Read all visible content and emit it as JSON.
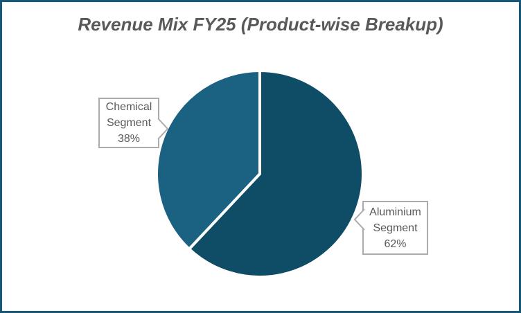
{
  "frame": {
    "background_color": "#FFFFFF",
    "border_color": "#15587A"
  },
  "chart_data": {
    "type": "pie",
    "title": "Revenue Mix FY25 (Product-wise Breakup)",
    "start_angle_deg": 0,
    "direction": "clockwise",
    "legend_position": "none",
    "label_style": "callout boxes with category name and percentage",
    "slices": [
      {
        "label": "Aluminium Segment",
        "value": 62,
        "display": "62%",
        "color": "#0F4D67"
      },
      {
        "label": "Chemical Segment",
        "value": 38,
        "display": "38%",
        "color": "#1B6181"
      }
    ]
  },
  "colors": {
    "title_text": "#595959",
    "label_text": "#595959",
    "label_border": "#ABABAB",
    "label_background": "#FFFFFF",
    "slice_divider": "#FFFFFF"
  }
}
